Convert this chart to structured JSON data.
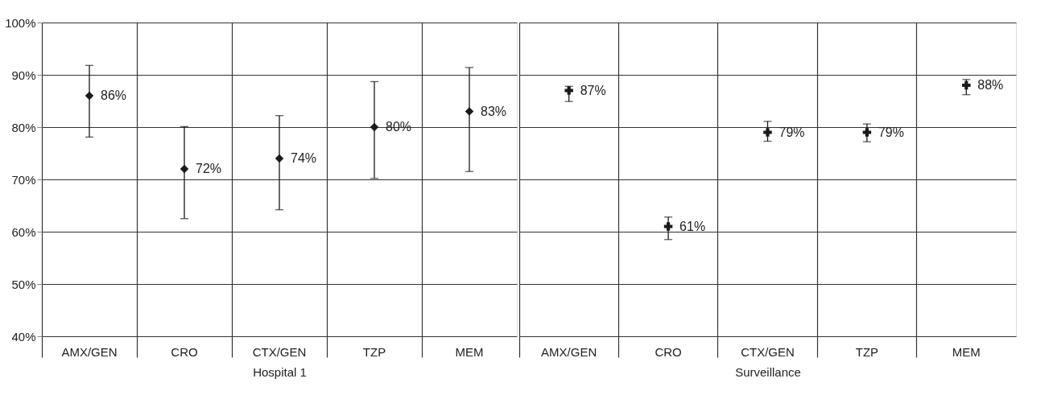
{
  "chart_data": [
    {
      "type": "scatter",
      "xlabel": "Hospital 1",
      "categories": [
        "AMX/GEN",
        "CRO",
        "CTX/GEN",
        "TZP",
        "MEM"
      ],
      "series": [
        {
          "color": "#1a1a1a",
          "marker": "diamond",
          "values": [
            86,
            72,
            74,
            80,
            83
          ],
          "errors": [
            [
              78.1,
              91.8
            ],
            [
              62.5,
              80.1
            ],
            [
              64.2,
              82.2
            ],
            [
              70.2,
              88.7
            ],
            [
              71.5,
              91.4
            ]
          ],
          "value_labels": [
            "86%",
            "72%",
            "74%",
            "80%",
            "83%"
          ]
        }
      ],
      "ylim": [
        40,
        100
      ],
      "yticks": [
        {
          "value": 40,
          "label": "40%"
        },
        {
          "value": 50,
          "label": "50%"
        },
        {
          "value": 60,
          "label": "60%"
        },
        {
          "value": 70,
          "label": "70%"
        },
        {
          "value": 80,
          "label": "80%"
        },
        {
          "value": 90,
          "label": "90%"
        },
        {
          "value": 100,
          "label": "100%"
        }
      ],
      "grid": true
    },
    {
      "type": "scatter",
      "xlabel": "Surveillance",
      "categories": [
        "AMX/GEN",
        "CRO",
        "CTX/GEN",
        "TZP",
        "MEM"
      ],
      "series": [
        {
          "color": "#1a1a1a",
          "marker": "cross",
          "values": [
            87,
            61,
            79,
            79,
            88
          ],
          "errors": [
            [
              84.9,
              87.8
            ],
            [
              58.5,
              62.8
            ],
            [
              77.3,
              81.1
            ],
            [
              77.2,
              80.6
            ],
            [
              86.2,
              89.1
            ]
          ],
          "value_labels": [
            "87%",
            "61%",
            "79%",
            "79%",
            "88%"
          ]
        }
      ],
      "ylim": [
        40,
        100
      ],
      "yticks": [
        {
          "value": 40,
          "label": null
        },
        {
          "value": 50,
          "label": null
        },
        {
          "value": 60,
          "label": null
        },
        {
          "value": 70,
          "label": null
        },
        {
          "value": 80,
          "label": null
        },
        {
          "value": 90,
          "label": null
        },
        {
          "value": 100,
          "label": null
        }
      ],
      "grid": true,
      "tick_labels": "x"
    }
  ]
}
